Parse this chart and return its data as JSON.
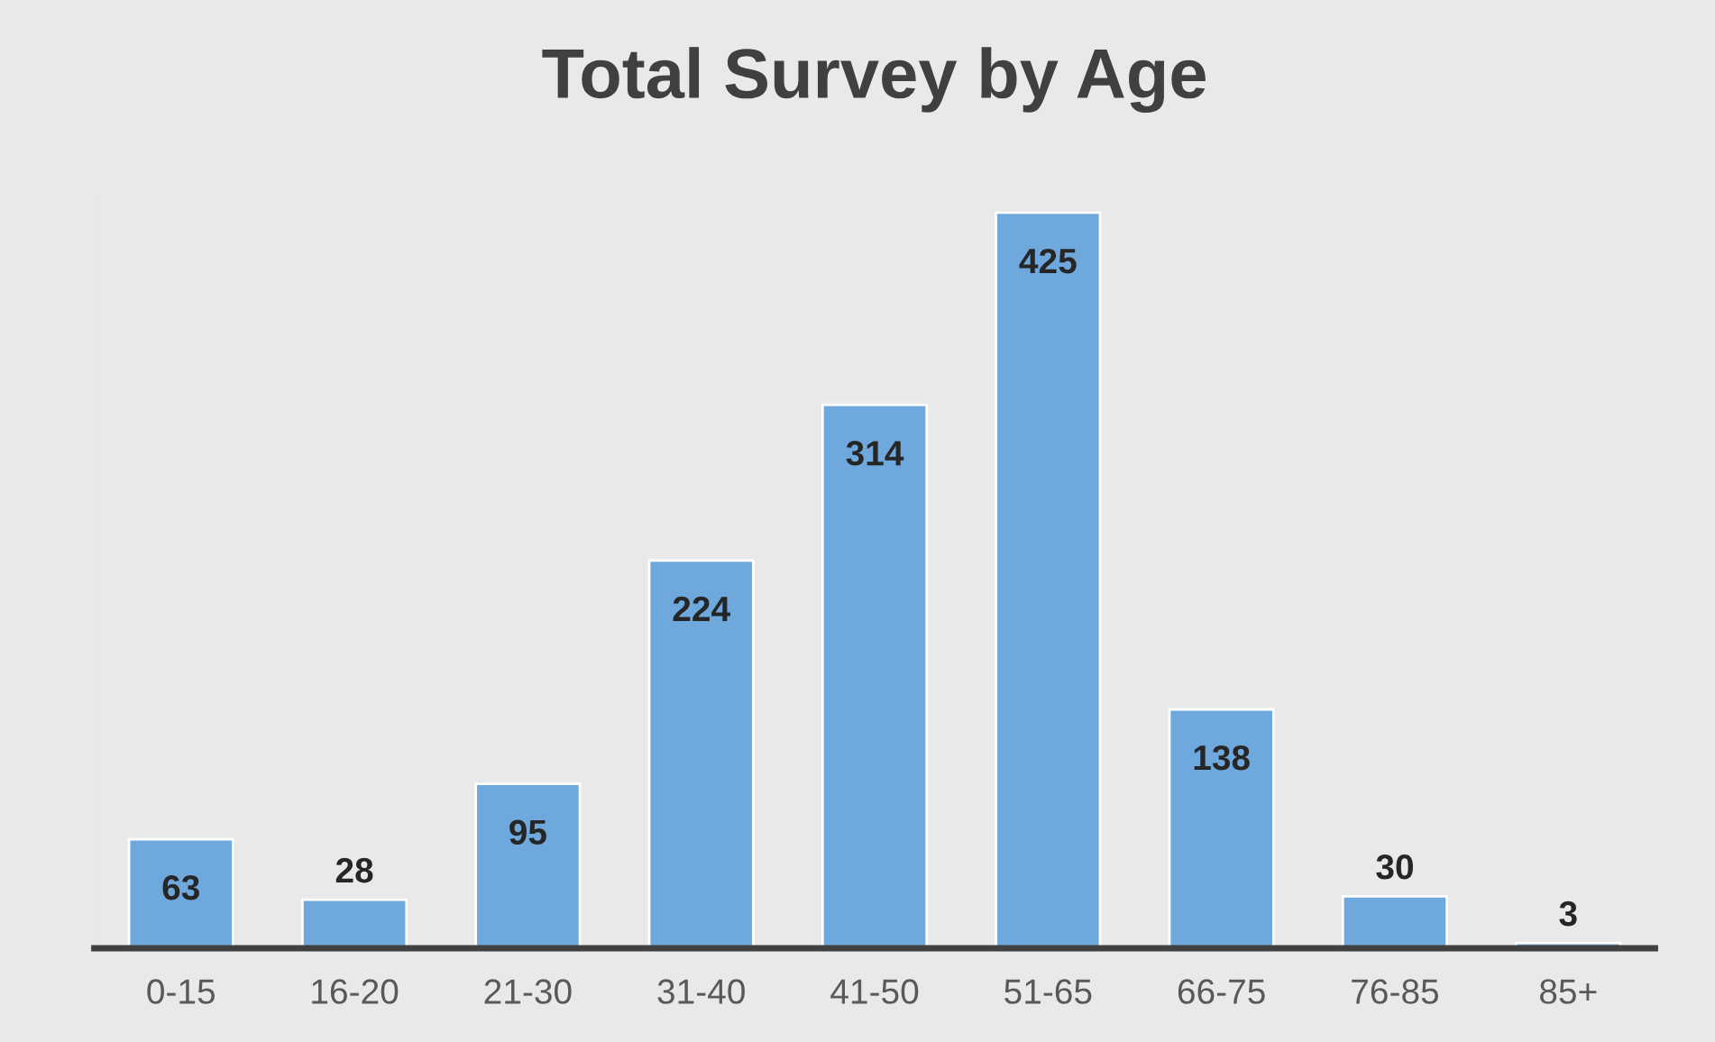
{
  "chart_data": {
    "type": "bar",
    "title": "Total Survey by Age",
    "categories": [
      "0-15",
      "16-20",
      "21-30",
      "31-40",
      "41-50",
      "51-65",
      "66-75",
      "76-85",
      "85+"
    ],
    "values": [
      63,
      28,
      95,
      224,
      314,
      425,
      138,
      30,
      3
    ],
    "color": "#6fa8dc",
    "data_labels": true,
    "grid": false,
    "legend": false
  }
}
